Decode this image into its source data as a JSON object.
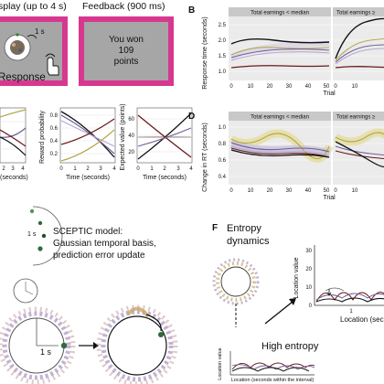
{
  "task": {
    "display_title": "splay (up to 4 s)",
    "feedback_title": "Feedback (900 ms)",
    "interval_label": "1 s",
    "response_label": "Response",
    "feedback_lines": [
      "You won",
      "109",
      "points"
    ]
  },
  "panel_letters": {
    "b": "B",
    "d": "D",
    "f": "F"
  },
  "panel_b": {
    "strip_left": "Total earnings < median",
    "strip_right": "Total earnings ≥",
    "ylabel": "Response time (seconds)",
    "xlabel": "Trial",
    "yticks": [
      "2.5",
      "2.0",
      "1.5",
      "1.0"
    ],
    "xticks": [
      "0",
      "10",
      "20",
      "30",
      "40",
      "50"
    ],
    "xticks_right": [
      "0",
      "10"
    ]
  },
  "panel_d": {
    "strip_left": "Total earnings < median",
    "strip_right": "Total earnings ≥",
    "ylabel": "Change in RT (seconds)",
    "xlabel": "Trial",
    "yticks": [
      "1.0",
      "0.8",
      "0.6",
      "0.4"
    ],
    "xticks": [
      "0",
      "10",
      "20",
      "30",
      "40",
      "50"
    ],
    "xticks_right": [
      "0",
      "10"
    ]
  },
  "panel_c": {
    "left_xlabel": "(seconds)",
    "left_xticks": [
      "2",
      "3",
      "4"
    ],
    "mid_ylabel": "Reward probability",
    "mid_yticks": [
      "0.8",
      "0.6",
      "0.4",
      "0.2"
    ],
    "mid_xticks": [
      "0",
      "1",
      "2",
      "3",
      "4"
    ],
    "mid_xlabel": "Time (seconds)",
    "right_ylabel": "Expected value (points)",
    "right_yticks": [
      "60",
      "40",
      "20"
    ],
    "right_xticks": [
      "0",
      "1",
      "2",
      "3",
      "4"
    ],
    "right_xlabel": "Time (seconds)"
  },
  "sceptic": {
    "title_lines": [
      "SCEPTIC model:",
      "Gaussian temporal basis,",
      "prediction error update"
    ],
    "small_label": "1 s",
    "large_label": "1 s"
  },
  "entropy": {
    "title_lines": [
      "Entropy",
      "dynamics"
    ],
    "ylabel": "Location value",
    "yticks": [
      "30",
      "20",
      "10",
      "0"
    ],
    "xticks": [
      "1"
    ],
    "xlabel": "Location (second",
    "high_entropy": "High entropy",
    "inset_ylabel": "Location value",
    "inset_xlabel": "Location (seconds within the interval)"
  },
  "colors": {
    "magenta_frame": "#d6388f",
    "screen_gray": "#a6a6a6",
    "strip_gray": "#c8c8c8",
    "panel_bg": "#ebebeb",
    "black": "#111111",
    "purple": "#6f5e9a",
    "lavender": "#b5a8d0",
    "olive": "#b5a84b",
    "maroon": "#6b1a1a",
    "salmon": "#d77a6f",
    "green": "#2e6b3a"
  }
}
